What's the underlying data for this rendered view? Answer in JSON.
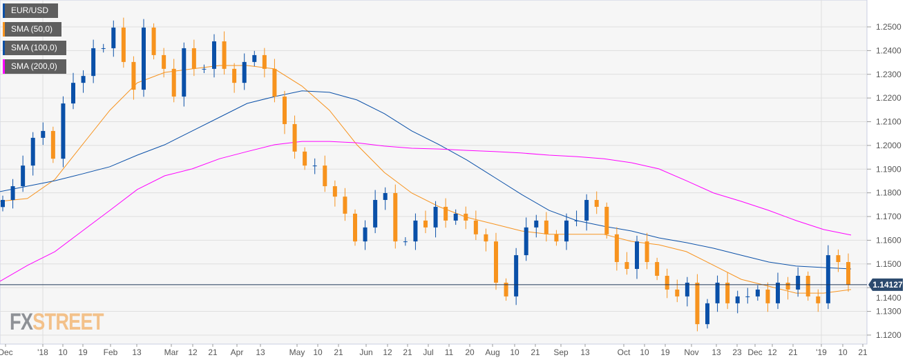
{
  "legend": [
    {
      "label": "EUR/USD",
      "color": "#0a50a8"
    },
    {
      "label": "SMA (50,0)",
      "color": "#f7931e"
    },
    {
      "label": "SMA (100,0)",
      "color": "#0a50a8"
    },
    {
      "label": "SMA (200,0)",
      "color": "#ff00ff"
    }
  ],
  "logo": {
    "part1": "FX",
    "part2": "STREET"
  },
  "chart_data": {
    "type": "candlestick",
    "symbol": "EUR/USD",
    "ylim": [
      1.115,
      1.2615
    ],
    "y_ticks": [
      "1.2500",
      "1.2400",
      "1.2300",
      "1.2200",
      "1.2100",
      "1.2000",
      "1.1900",
      "1.1800",
      "1.1700",
      "1.1600",
      "1.1500",
      "1.1400",
      "1.1300",
      "1.1200"
    ],
    "x_ticks": [
      "Dec",
      "'18",
      "10",
      "19",
      "Feb",
      "13",
      "Mar",
      "12",
      "21",
      "Apr",
      "13",
      "May",
      "10",
      "21",
      "Jun",
      "12",
      "21",
      "Jul",
      "11",
      "20",
      "Aug",
      "10",
      "21",
      "Sep",
      "13",
      "Oct",
      "10",
      "19",
      "Nov",
      "13",
      "23",
      "Dec",
      "12",
      "21",
      "'19",
      "10",
      "21"
    ],
    "current_price": "1.14127",
    "open_first": 1.174,
    "closes": [
      1.177,
      1.1828,
      1.1915,
      1.2032,
      1.2061,
      1.1944,
      1.2177,
      1.2264,
      1.2293,
      1.241,
      1.241,
      1.2497,
      1.2352,
      1.2235,
      1.2497,
      1.2381,
      1.2323,
      1.2206,
      1.241,
      1.2323,
      1.2323,
      1.2439,
      1.2323,
      1.2264,
      1.2352,
      1.2381,
      1.2323,
      1.2206,
      1.209,
      1.1974,
      1.1915,
      1.1915,
      1.1828,
      1.1784,
      1.1712,
      1.1595,
      1.1654,
      1.177,
      1.1799,
      1.1595,
      1.1595,
      1.1683,
      1.1654,
      1.1741,
      1.1683,
      1.1712,
      1.1683,
      1.1625,
      1.1595,
      1.1421,
      1.1363,
      1.1537,
      1.1654,
      1.1683,
      1.1625,
      1.1595,
      1.1683,
      1.1683,
      1.177,
      1.1741,
      1.1625,
      1.1508,
      1.1479,
      1.1595,
      1.1508,
      1.145,
      1.1392,
      1.1363,
      1.1421,
      1.1246,
      1.1334,
      1.1421,
      1.1334,
      1.1363,
      1.1363,
      1.1392,
      1.1334,
      1.1421,
      1.1392,
      1.145,
      1.1363,
      1.1334,
      1.1537,
      1.1508,
      1.14127
    ],
    "series": [
      {
        "name": "SMA (50,0)",
        "color": "#f7931e",
        "values": [
          1.1764,
          1.1776,
          1.1857,
          1.2003,
          1.2148,
          1.2264,
          1.2308,
          1.2323,
          1.2337,
          1.2337,
          1.2323,
          1.225,
          1.2148,
          1.2003,
          1.1886,
          1.1799,
          1.1741,
          1.1697,
          1.1668,
          1.1639,
          1.1625,
          1.1625,
          1.1625,
          1.1595,
          1.1581,
          1.1552,
          1.1494,
          1.1435,
          1.1406,
          1.1377,
          1.1377,
          1.1392
        ]
      },
      {
        "name": "SMA (100,0)",
        "color": "#0a50a8",
        "values": [
          1.1805,
          1.1828,
          1.1851,
          1.188,
          1.191,
          1.1959,
          1.2003,
          1.2061,
          1.2119,
          1.2177,
          1.2206,
          1.223,
          1.2224,
          1.2192,
          1.2134,
          1.2061,
          1.2003,
          1.1939,
          1.1866,
          1.1793,
          1.1726,
          1.1683,
          1.1659,
          1.1639,
          1.161,
          1.159,
          1.1566,
          1.1537,
          1.1508,
          1.1491,
          1.1485,
          1.1479
        ]
      },
      {
        "name": "SMA (200,0)",
        "color": "#ff00ff",
        "values": [
          1.1427,
          1.1494,
          1.1552,
          1.1639,
          1.1726,
          1.1814,
          1.1872,
          1.1901,
          1.1944,
          1.1974,
          1.2003,
          1.2017,
          1.2017,
          1.2011,
          1.1997,
          1.1988,
          1.1985,
          1.1979,
          1.1974,
          1.1968,
          1.1959,
          1.1953,
          1.1944,
          1.1927,
          1.1901,
          1.1851,
          1.1799,
          1.1764,
          1.1726,
          1.1683,
          1.1645,
          1.1622
        ]
      }
    ]
  }
}
